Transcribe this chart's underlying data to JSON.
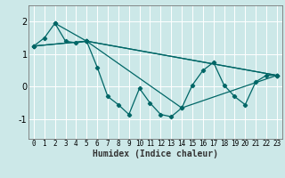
{
  "xlabel": "Humidex (Indice chaleur)",
  "xlim": [
    -0.5,
    23.5
  ],
  "ylim": [
    -1.6,
    2.5
  ],
  "xticks": [
    0,
    1,
    2,
    3,
    4,
    5,
    6,
    7,
    8,
    9,
    10,
    11,
    12,
    13,
    14,
    15,
    16,
    17,
    18,
    19,
    20,
    21,
    22,
    23
  ],
  "yticks": [
    -1,
    0,
    1,
    2
  ],
  "background_color": "#cce8e8",
  "grid_color": "#ffffff",
  "line_color": "#006666",
  "series": [
    {
      "x": [
        0,
        1,
        2,
        3,
        4,
        5,
        6,
        7,
        8,
        9,
        10,
        11,
        12,
        13,
        14,
        15,
        16,
        17,
        18,
        19,
        20,
        21,
        22,
        23
      ],
      "y": [
        1.25,
        1.5,
        1.95,
        1.4,
        1.35,
        1.4,
        0.6,
        -0.3,
        -0.55,
        -0.85,
        -0.05,
        -0.5,
        -0.85,
        -0.92,
        -0.65,
        0.05,
        0.5,
        0.75,
        0.05,
        -0.3,
        -0.55,
        0.15,
        0.35,
        0.35
      ]
    },
    {
      "x": [
        0,
        5,
        23
      ],
      "y": [
        1.25,
        1.4,
        0.35
      ]
    },
    {
      "x": [
        2,
        5,
        23
      ],
      "y": [
        1.95,
        1.4,
        0.35
      ]
    },
    {
      "x": [
        0,
        5,
        14,
        23
      ],
      "y": [
        1.25,
        1.4,
        -0.65,
        0.35
      ]
    }
  ]
}
